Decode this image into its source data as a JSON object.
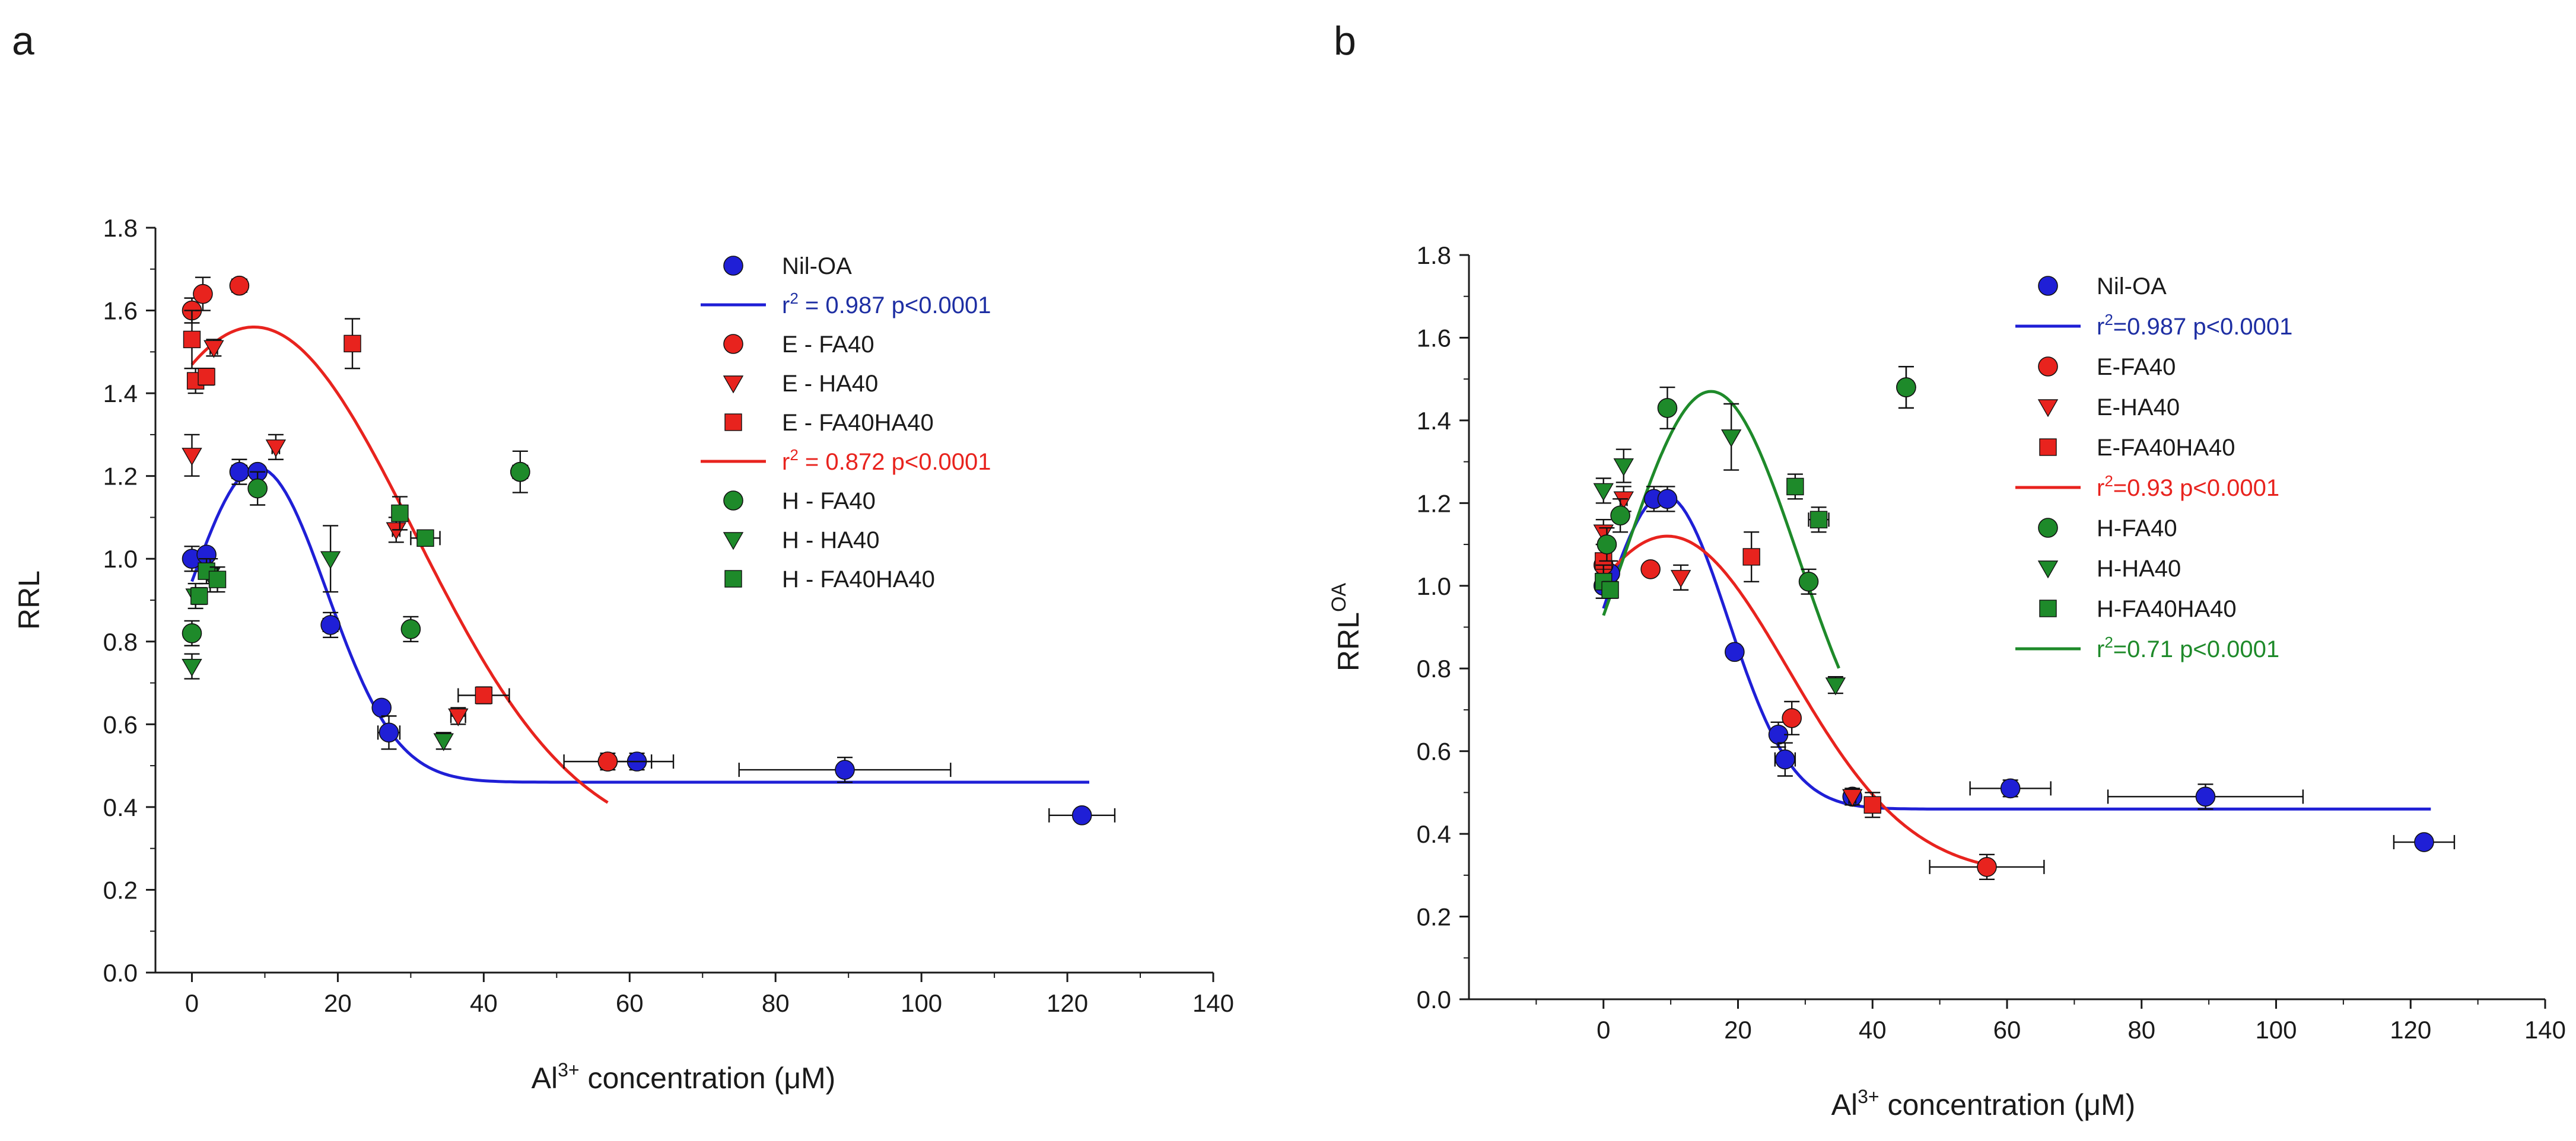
{
  "colors": {
    "blue": "#1f1fd6",
    "red": "#e8231e",
    "green": "#1e8a2a",
    "dark_blue": "#1e2fa3",
    "axis": "#1a1a1a"
  },
  "chart_data": [
    {
      "panel_label": "a",
      "type": "scatter",
      "xlabel_prefix": "Al",
      "xlabel_sup": "3+",
      "xlabel_suffix": " concentration (μM)",
      "ylabel": "RRL",
      "ylabel_sup": "",
      "xlim": [
        -5,
        140
      ],
      "ylim": [
        0,
        1.8
      ],
      "xticks": [
        "0",
        "20",
        "40",
        "60",
        "80",
        "100",
        "120",
        "140"
      ],
      "yticks": [
        "0.0",
        "0.2",
        "0.4",
        "0.6",
        "0.8",
        "1.0",
        "1.2",
        "1.4",
        "1.6",
        "1.8"
      ],
      "series": [
        {
          "name": "Nil-OA",
          "marker": "circle",
          "color": "blue",
          "points": [
            [
              0,
              1.0,
              0.01,
              0.03
            ],
            [
              2,
              1.01,
              0,
              0
            ],
            [
              6.5,
              1.21,
              1.0,
              0.03
            ],
            [
              9,
              1.21,
              0,
              0
            ],
            [
              19,
              0.84,
              1.0,
              0.03
            ],
            [
              26,
              0.64,
              0,
              0
            ],
            [
              27,
              0.58,
              1.5,
              0.04
            ],
            [
              57,
              0.51,
              0,
              0
            ],
            [
              61,
              0.51,
              5,
              0.02
            ],
            [
              89.5,
              0.49,
              14.5,
              0.03
            ],
            [
              122,
              0.38,
              4.5,
              0
            ]
          ]
        },
        {
          "name": "E - FA40",
          "marker": "circle",
          "color": "red",
          "points": [
            [
              0,
              1.6,
              0.5,
              0.03
            ],
            [
              1.5,
              1.64,
              0,
              0.04
            ],
            [
              6.5,
              1.66,
              1.0,
              0
            ],
            [
              57,
              0.51,
              6,
              0.02
            ],
            [
              45,
              1.21,
              0,
              0
            ]
          ]
        },
        {
          "name": "E - HA40",
          "marker": "triangle-down",
          "color": "red",
          "points": [
            [
              0,
              1.25,
              0,
              0.05
            ],
            [
              3,
              1.51,
              0.5,
              0.02
            ],
            [
              11.5,
              1.27,
              0.5,
              0.03
            ],
            [
              28,
              1.07,
              0.5,
              0.03
            ],
            [
              36.5,
              0.62,
              1.0,
              0.02
            ]
          ]
        },
        {
          "name": "E - FA40HA40",
          "marker": "square",
          "color": "red",
          "points": [
            [
              0,
              1.53,
              0,
              0.07
            ],
            [
              0.5,
              1.43,
              0.5,
              0.03
            ],
            [
              2,
              1.44,
              0.5,
              0.02
            ],
            [
              22,
              1.52,
              0,
              0.06
            ],
            [
              40,
              0.67,
              3.5,
              0.02
            ]
          ]
        },
        {
          "name": "H - FA40",
          "marker": "circle",
          "color": "green",
          "points": [
            [
              0,
              0.82,
              0,
              0.03
            ],
            [
              9,
              1.17,
              0,
              0.04
            ],
            [
              30,
              0.83,
              0.5,
              0.03
            ],
            [
              45,
              1.21,
              1.0,
              0.05
            ]
          ]
        },
        {
          "name": "H - HA40",
          "marker": "triangle-down",
          "color": "green",
          "points": [
            [
              0,
              0.74,
              0,
              0.03
            ],
            [
              0.5,
              0.91,
              0,
              0.03
            ],
            [
              2.5,
              0.96,
              0,
              0.04
            ],
            [
              19,
              1.0,
              0,
              0.08
            ],
            [
              34.5,
              0.56,
              0,
              0.02
            ]
          ]
        },
        {
          "name": "H - FA40HA40",
          "marker": "square",
          "color": "green",
          "points": [
            [
              1,
              0.91,
              0.5,
              0.02
            ],
            [
              2,
              0.97,
              0.5,
              0.03
            ],
            [
              3.5,
              0.95,
              0,
              0.03
            ],
            [
              28.5,
              1.11,
              0,
              0.04
            ],
            [
              32,
              1.05,
              2.0,
              0
            ]
          ]
        }
      ],
      "fits": [
        {
          "name": "r² = 0.987 p<0.0001",
          "color": "blue",
          "type": "gauss",
          "params": {
            "y0": 0.46,
            "a": 0.76,
            "x0": 9,
            "w": 9.5
          },
          "x_range": [
            0,
            123
          ]
        },
        {
          "name": "r² = 0.872 p<0.0001",
          "color": "red",
          "type": "gauss",
          "params": {
            "y0": 0.3,
            "a": 1.26,
            "x0": 8.5,
            "w": 22
          },
          "x_range": [
            0,
            57
          ]
        }
      ],
      "legend": [
        {
          "kind": "marker",
          "marker": "circle",
          "color": "blue",
          "text": "Nil-OA",
          "text_color": "axis"
        },
        {
          "kind": "line",
          "color": "blue",
          "text_pre": "r",
          "text_sup": "2",
          "text_post": " = 0.987 p<0.0001",
          "text_color": "dark_blue"
        },
        {
          "kind": "marker",
          "marker": "circle",
          "color": "red",
          "text": "E - FA40",
          "text_color": "axis"
        },
        {
          "kind": "marker",
          "marker": "triangle-down",
          "color": "red",
          "text": "E - HA40",
          "text_color": "axis"
        },
        {
          "kind": "marker",
          "marker": "square",
          "color": "red",
          "text": "E - FA40HA40",
          "text_color": "axis"
        },
        {
          "kind": "line",
          "color": "red",
          "text_pre": "r",
          "text_sup": "2",
          "text_post": " = 0.872 p<0.0001",
          "text_color": "red"
        },
        {
          "kind": "marker",
          "marker": "circle",
          "color": "green",
          "text": "H - FA40",
          "text_color": "axis"
        },
        {
          "kind": "marker",
          "marker": "triangle-down",
          "color": "green",
          "text": "H - HA40",
          "text_color": "axis"
        },
        {
          "kind": "marker",
          "marker": "square",
          "color": "green",
          "text": "H - FA40HA40",
          "text_color": "axis"
        }
      ]
    },
    {
      "panel_label": "b",
      "type": "scatter",
      "xlabel_prefix": "Al",
      "xlabel_sup": "3+",
      "xlabel_suffix": " concentration (μM)",
      "ylabel": "RRL",
      "ylabel_sup": "OA",
      "xlim": [
        -20,
        140
      ],
      "ylim": [
        0,
        1.8
      ],
      "xticks": [
        "0",
        "20",
        "40",
        "60",
        "80",
        "100",
        "120",
        "140"
      ],
      "yticks": [
        "0.0",
        "0.2",
        "0.4",
        "0.6",
        "0.8",
        "1.0",
        "1.2",
        "1.4",
        "1.6",
        "1.8"
      ],
      "series": [
        {
          "name": "Nil-OA",
          "marker": "circle",
          "color": "blue",
          "points": [
            [
              0,
              1.0,
              0,
              0.03
            ],
            [
              1,
              1.03,
              0,
              0.03
            ],
            [
              7.5,
              1.21,
              1.0,
              0.03
            ],
            [
              9.5,
              1.21,
              0,
              0.03
            ],
            [
              19.5,
              0.84,
              0,
              0
            ],
            [
              26,
              0.64,
              0.5,
              0.03
            ],
            [
              27,
              0.58,
              1.5,
              0.04
            ],
            [
              37,
              0.49,
              1.0,
              0
            ],
            [
              60.5,
              0.51,
              6,
              0.02
            ],
            [
              89.5,
              0.49,
              14.5,
              0.03
            ],
            [
              122,
              0.38,
              4.5,
              0
            ]
          ]
        },
        {
          "name": "E-FA40",
          "marker": "circle",
          "color": "red",
          "points": [
            [
              0,
              1.05,
              0,
              0.02
            ],
            [
              7,
              1.04,
              0,
              0
            ],
            [
              28,
              0.68,
              0,
              0.04
            ],
            [
              57,
              0.32,
              8.5,
              0.03
            ],
            [
              45,
              1.48,
              0,
              0.05
            ]
          ]
        },
        {
          "name": "E-HA40",
          "marker": "triangle-down",
          "color": "red",
          "points": [
            [
              0,
              1.13,
              0,
              0.03
            ],
            [
              3,
              1.21,
              0.5,
              0.03
            ],
            [
              11.5,
              1.02,
              0,
              0.03
            ],
            [
              37,
              0.49,
              0.5,
              0.02
            ]
          ]
        },
        {
          "name": "E-FA40HA40",
          "marker": "square",
          "color": "red",
          "points": [
            [
              0,
              1.06,
              0,
              0.04
            ],
            [
              22,
              1.07,
              0,
              0.06
            ],
            [
              40,
              0.47,
              1.0,
              0.03
            ]
          ]
        },
        {
          "name": "H-FA40",
          "marker": "circle",
          "color": "green",
          "points": [
            [
              0.5,
              1.1,
              0,
              0.04
            ],
            [
              2.5,
              1.17,
              0,
              0.04
            ],
            [
              9.5,
              1.43,
              0,
              0.05
            ],
            [
              30.5,
              1.01,
              0,
              0.03
            ],
            [
              45,
              1.48,
              1.0,
              0.05
            ]
          ]
        },
        {
          "name": "H-HA40",
          "marker": "triangle-down",
          "color": "green",
          "points": [
            [
              0,
              1.23,
              0,
              0.03
            ],
            [
              3,
              1.29,
              0,
              0.04
            ],
            [
              19,
              1.36,
              0,
              0.08
            ],
            [
              34.5,
              0.76,
              0,
              0.02
            ]
          ]
        },
        {
          "name": "H-FA40HA40",
          "marker": "square",
          "color": "green",
          "points": [
            [
              0,
              1.01,
              0,
              0.04
            ],
            [
              1,
              0.99,
              0,
              0.02
            ],
            [
              28.5,
              1.24,
              0,
              0.03
            ],
            [
              32,
              1.16,
              1.5,
              0.03
            ]
          ]
        }
      ],
      "fits": [
        {
          "name": "r²=0.987 p<0.0001",
          "color": "blue",
          "type": "gauss",
          "params": {
            "y0": 0.46,
            "a": 0.76,
            "x0": 9,
            "w": 9.5
          },
          "x_range": [
            0,
            123
          ]
        },
        {
          "name": "r²=0.93 p<0.0001",
          "color": "red",
          "type": "gauss",
          "params": {
            "y0": 0.3,
            "a": 0.82,
            "x0": 9.5,
            "w": 18
          },
          "x_range": [
            0,
            57
          ]
        },
        {
          "name": "r²=0.71 p<0.0001",
          "color": "green",
          "type": "gauss",
          "params": {
            "y0": 0.45,
            "a": 1.02,
            "x0": 16,
            "w": 13
          },
          "x_range": [
            0,
            35
          ]
        }
      ],
      "legend": [
        {
          "kind": "marker",
          "marker": "circle",
          "color": "blue",
          "text": "Nil-OA",
          "text_color": "axis"
        },
        {
          "kind": "line",
          "color": "blue",
          "text_pre": "r",
          "text_sup": "2",
          "text_post": "=0.987 p<0.0001",
          "text_color": "dark_blue"
        },
        {
          "kind": "marker",
          "marker": "circle",
          "color": "red",
          "text": "E-FA40",
          "text_color": "axis"
        },
        {
          "kind": "marker",
          "marker": "triangle-down",
          "color": "red",
          "text": "E-HA40",
          "text_color": "axis"
        },
        {
          "kind": "marker",
          "marker": "square",
          "color": "red",
          "text": "E-FA40HA40",
          "text_color": "axis"
        },
        {
          "kind": "line",
          "color": "red",
          "text_pre": "r",
          "text_sup": "2",
          "text_post": "=0.93 p<0.0001",
          "text_color": "red"
        },
        {
          "kind": "marker",
          "marker": "circle",
          "color": "green",
          "text": "H-FA40",
          "text_color": "axis"
        },
        {
          "kind": "marker",
          "marker": "triangle-down",
          "color": "green",
          "text": "H-HA40",
          "text_color": "axis"
        },
        {
          "kind": "marker",
          "marker": "square",
          "color": "green",
          "text": "H-FA40HA40",
          "text_color": "axis"
        },
        {
          "kind": "line",
          "color": "green",
          "text_pre": "r",
          "text_sup": "2",
          "text_post": "=0.71 p<0.0001",
          "text_color": "green"
        }
      ]
    }
  ]
}
